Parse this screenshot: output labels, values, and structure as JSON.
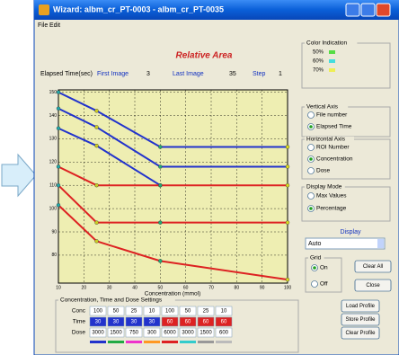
{
  "window": {
    "title": "Wizard: albm_cr_PT-0003 - albm_cr_PT-0035",
    "menu": [
      "File",
      "Edit"
    ]
  },
  "info": {
    "elapsed_label": "Elapsed Time(sec)",
    "first_label": "First Image",
    "first": 3,
    "last_label": "Last Image",
    "last": 35,
    "step_label": "Step",
    "step": 1
  },
  "chart_data": {
    "type": "line",
    "title": "Relative Area",
    "x_label": "Concentration (mmol)",
    "x": [
      10,
      25,
      50,
      100
    ],
    "series": [
      {
        "color": "#2233cc",
        "values": [
          150,
          142,
          126.5,
          126.5
        ]
      },
      {
        "color": "#2233cc",
        "values": [
          143,
          135,
          118,
          118
        ]
      },
      {
        "color": "#2233cc",
        "values": [
          134.5,
          127,
          110,
          null
        ]
      },
      {
        "color": "#dd2222",
        "values": [
          118,
          110,
          110,
          110
        ]
      },
      {
        "color": "#dd2222",
        "values": [
          110,
          94,
          94,
          94
        ]
      },
      {
        "color": "#dd2222",
        "values": [
          101.5,
          86,
          77.5,
          69.5
        ]
      }
    ],
    "marker_colors": [
      "#22aaaa",
      "#cccc22",
      "#22aa77",
      "#dddd22"
    ],
    "xlim": [
      10,
      100
    ],
    "xticks": [
      10,
      20,
      30,
      40,
      50,
      60,
      70,
      80,
      90,
      100
    ],
    "ylim": [
      68,
      151
    ],
    "yticks": [
      80,
      90,
      100,
      110,
      120,
      130,
      140,
      150
    ],
    "grid": true
  },
  "color_indication": {
    "title": "Color Indication",
    "items": [
      {
        "label": "50%",
        "color": "#55dd44"
      },
      {
        "label": "60%",
        "color": "#44dddd"
      },
      {
        "label": "70%",
        "color": "#eeee55"
      }
    ]
  },
  "vertical_axis": {
    "title": "Vertical Axis",
    "options": [
      {
        "label": "File number",
        "checked": false
      },
      {
        "label": "Elapsed Time",
        "checked": true
      }
    ]
  },
  "horizontal_axis": {
    "title": "Horizontal Axis",
    "options": [
      {
        "label": "ROI Number",
        "checked": false
      },
      {
        "label": "Concentration",
        "checked": true
      },
      {
        "label": "Dose",
        "checked": false
      }
    ]
  },
  "display_mode": {
    "title": "Display Mode",
    "options": [
      {
        "label": "Max Values",
        "checked": false
      },
      {
        "label": "Percentage",
        "checked": true
      }
    ]
  },
  "display": {
    "label": "Display",
    "value": "Auto"
  },
  "grid_box": {
    "title": "Grid",
    "options": [
      {
        "label": "On",
        "checked": true
      },
      {
        "label": "Off",
        "checked": false
      }
    ]
  },
  "buttons": [
    "Clear All",
    "Close",
    "Load Profile",
    "Store Profile",
    "Clear Profile"
  ],
  "settings_table": {
    "title": "Concentration, Time and Dose Settings",
    "rows": [
      {
        "label": "Conc",
        "values": [
          100,
          50,
          25,
          10,
          100,
          50,
          25,
          10
        ]
      },
      {
        "label": "Time",
        "values": [
          30,
          30,
          30,
          30,
          60,
          60,
          60,
          60
        ],
        "cell_colors": [
          "#2233cc",
          "#2233cc",
          "#2233cc",
          "#2233cc",
          "#dd2222",
          "#dd2222",
          "#dd2222",
          "#dd2222"
        ]
      },
      {
        "label": "Dose",
        "values": [
          3000,
          1500,
          750,
          300,
          6000,
          3000,
          1500,
          600
        ]
      }
    ],
    "swatches": [
      "#2233cc",
      "#22aa44",
      "#ee33cc",
      "#ff9922",
      "#dd2222",
      "#33cccc",
      "#999999",
      "#bbbbbb"
    ]
  }
}
